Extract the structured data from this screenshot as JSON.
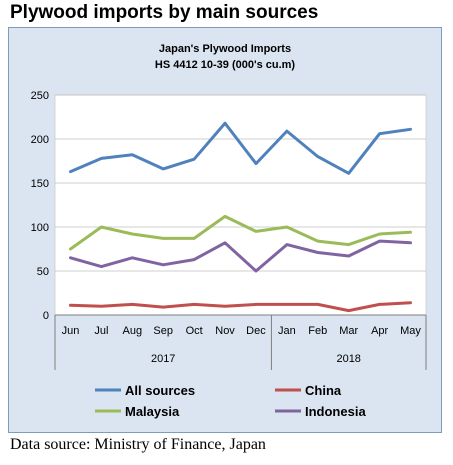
{
  "heading": "Plywood imports by main sources",
  "source_note": "Data source: Ministry of Finance, Japan",
  "chart_data": {
    "type": "line",
    "title": "Japan's Plywood Imports",
    "subtitle": "HS 4412 10-39  (000's cu.m)",
    "categories": [
      "Jun",
      "Jul",
      "Aug",
      "Sep",
      "Oct",
      "Nov",
      "Dec",
      "Jan",
      "Feb",
      "Mar",
      "Apr",
      "May"
    ],
    "year_groups": [
      {
        "label": "2017",
        "count": 7
      },
      {
        "label": "2018",
        "count": 5
      }
    ],
    "ylim": [
      0,
      250
    ],
    "yticks": [
      0,
      50,
      100,
      150,
      200,
      250
    ],
    "grid": true,
    "legend_position": "bottom",
    "series": [
      {
        "name": "All sources",
        "color": "#4f81bd",
        "values": [
          163,
          178,
          182,
          166,
          177,
          218,
          172,
          209,
          180,
          161,
          206,
          211
        ]
      },
      {
        "name": "China",
        "color": "#c0504d",
        "values": [
          11,
          10,
          12,
          9,
          12,
          10,
          12,
          12,
          12,
          5,
          12,
          14
        ]
      },
      {
        "name": "Malaysia",
        "color": "#9bbb59",
        "values": [
          75,
          100,
          92,
          87,
          87,
          112,
          95,
          100,
          84,
          80,
          92,
          94
        ]
      },
      {
        "name": "Indonesia",
        "color": "#8064a2",
        "values": [
          65,
          55,
          65,
          57,
          63,
          82,
          50,
          80,
          71,
          67,
          84,
          82
        ]
      }
    ]
  }
}
